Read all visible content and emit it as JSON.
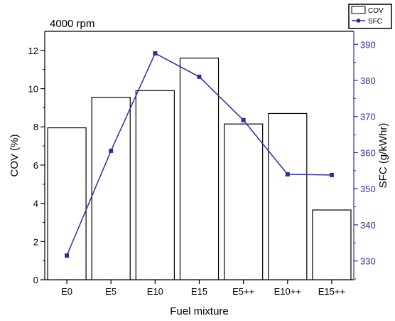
{
  "chart_data": {
    "type": "bar",
    "subtitle": "4000 rpm",
    "xlabel": "Fuel mixture",
    "categories": [
      "E0",
      "E5",
      "E10",
      "E15",
      "E5++",
      "E10++",
      "E15++"
    ],
    "series": [
      {
        "name": "COV",
        "type": "bar",
        "axis": "left",
        "values": [
          7.95,
          9.55,
          9.9,
          11.6,
          8.15,
          8.7,
          3.65
        ]
      },
      {
        "name": "SFC",
        "type": "line",
        "axis": "right",
        "values": [
          331.5,
          360.5,
          387.5,
          381,
          369,
          354,
          353.8
        ]
      }
    ],
    "left_axis": {
      "label": "COV (%)",
      "range": [
        0,
        13
      ],
      "ticks": [
        0,
        2,
        4,
        6,
        8,
        10,
        12
      ]
    },
    "right_axis": {
      "label": "SFC (g/kWhr)",
      "range": [
        324.8,
        393.6
      ],
      "ticks": [
        330,
        340,
        350,
        360,
        370,
        380,
        390
      ]
    },
    "legend": {
      "placement": "top-right",
      "entries": [
        "COV",
        "SFC"
      ]
    },
    "colors": {
      "bar_stroke": "#000000",
      "bar_fill": "#ffffff",
      "line": "#2b2f9c",
      "right_axis": "#2b2f9c"
    }
  }
}
